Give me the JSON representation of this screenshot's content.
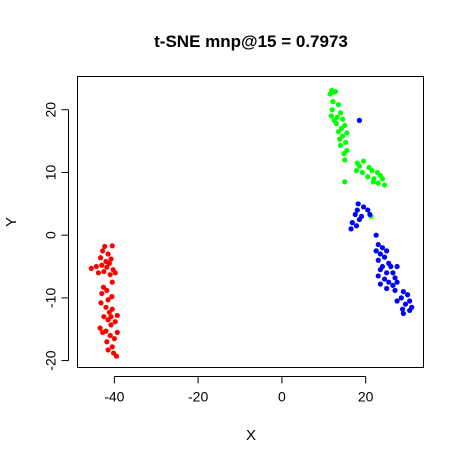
{
  "chart_data": {
    "type": "scatter",
    "title": "t-SNE mnp@15 = 0.7973",
    "xlabel": "X",
    "ylabel": "Y",
    "xlim": [
      -48.8,
      33.8
    ],
    "ylim": [
      -21.1,
      25.3
    ],
    "xticks": [
      -40,
      -20,
      0,
      20
    ],
    "yticks": [
      -20,
      -10,
      0,
      10,
      20
    ],
    "grid": false,
    "legend": "none",
    "series": [
      {
        "color": "#ff0000",
        "points": [
          [
            -42.3,
            -1.8
          ],
          [
            -40.5,
            -1.7
          ],
          [
            -42.8,
            -2.5
          ],
          [
            -41.5,
            -3.0
          ],
          [
            -43.3,
            -3.6
          ],
          [
            -40.8,
            -3.8
          ],
          [
            -42.0,
            -4.2
          ],
          [
            -41.2,
            -4.5
          ],
          [
            -43.0,
            -4.8
          ],
          [
            -41.8,
            -5.1
          ],
          [
            -44.3,
            -5.0
          ],
          [
            -45.5,
            -5.3
          ],
          [
            -40.3,
            -5.5
          ],
          [
            -42.5,
            -5.8
          ],
          [
            -39.8,
            -6.0
          ],
          [
            -41.0,
            -6.3
          ],
          [
            -43.8,
            -6.0
          ],
          [
            -40.5,
            -7.5
          ],
          [
            -42.6,
            -8.3
          ],
          [
            -41.8,
            -8.8
          ],
          [
            -43.0,
            -9.3
          ],
          [
            -40.6,
            -9.8
          ],
          [
            -41.5,
            -10.3
          ],
          [
            -43.2,
            -10.8
          ],
          [
            -42.0,
            -11.5
          ],
          [
            -40.5,
            -11.8
          ],
          [
            -41.2,
            -12.3
          ],
          [
            -39.3,
            -12.8
          ],
          [
            -40.8,
            -13.0
          ],
          [
            -42.5,
            -13.0
          ],
          [
            -41.5,
            -13.5
          ],
          [
            -39.8,
            -13.8
          ],
          [
            -40.8,
            -14.3
          ],
          [
            -43.4,
            -14.8
          ],
          [
            -42.0,
            -15.3
          ],
          [
            -39.3,
            -15.5
          ],
          [
            -41.0,
            -16.0
          ],
          [
            -42.8,
            -15.5
          ],
          [
            -40.0,
            -16.5
          ],
          [
            -41.8,
            -17.0
          ],
          [
            -40.5,
            -17.8
          ],
          [
            -41.5,
            -18.3
          ],
          [
            -40.2,
            -18.8
          ],
          [
            -39.5,
            -19.3
          ]
        ]
      },
      {
        "color": "#00ff00",
        "points": [
          [
            11.9,
            23.1
          ],
          [
            12.4,
            22.8
          ],
          [
            11.5,
            22.5
          ],
          [
            12.8,
            22.9
          ],
          [
            12.2,
            21.3
          ],
          [
            13.5,
            20.8
          ],
          [
            12.0,
            20.0
          ],
          [
            14.0,
            19.5
          ],
          [
            11.8,
            19.0
          ],
          [
            13.2,
            18.8
          ],
          [
            12.5,
            18.3
          ],
          [
            14.5,
            18.5
          ],
          [
            13.0,
            17.8
          ],
          [
            15.0,
            17.5
          ],
          [
            14.2,
            17.0
          ],
          [
            13.5,
            16.5
          ],
          [
            15.5,
            16.3
          ],
          [
            14.5,
            15.8
          ],
          [
            13.8,
            15.3
          ],
          [
            15.2,
            14.8
          ],
          [
            14.0,
            14.3
          ],
          [
            15.5,
            13.5
          ],
          [
            14.8,
            13.0
          ],
          [
            15.0,
            12.0
          ],
          [
            18.0,
            11.5
          ],
          [
            19.5,
            11.8
          ],
          [
            18.5,
            11.0
          ],
          [
            20.8,
            10.8
          ],
          [
            17.8,
            10.3
          ],
          [
            19.2,
            10.0
          ],
          [
            21.5,
            10.3
          ],
          [
            22.8,
            10.0
          ],
          [
            23.5,
            9.5
          ],
          [
            22.0,
            9.0
          ],
          [
            20.5,
            9.3
          ],
          [
            21.8,
            8.5
          ],
          [
            24.0,
            9.0
          ],
          [
            23.0,
            8.3
          ],
          [
            24.5,
            8.0
          ],
          [
            15.0,
            8.5
          ],
          [
            21.3,
            3.0
          ]
        ]
      },
      {
        "color": "#0000ff",
        "points": [
          [
            18.5,
            18.3
          ],
          [
            18.2,
            5.0
          ],
          [
            19.5,
            4.5
          ],
          [
            18.0,
            4.0
          ],
          [
            20.5,
            4.0
          ],
          [
            17.5,
            3.3
          ],
          [
            19.0,
            3.0
          ],
          [
            21.0,
            3.3
          ],
          [
            18.5,
            2.5
          ],
          [
            16.8,
            2.0
          ],
          [
            17.8,
            1.5
          ],
          [
            16.5,
            1.0
          ],
          [
            22.5,
            0.0
          ],
          [
            23.0,
            -1.5
          ],
          [
            24.0,
            -2.0
          ],
          [
            22.5,
            -2.5
          ],
          [
            25.0,
            -2.5
          ],
          [
            23.5,
            -3.0
          ],
          [
            24.5,
            -3.5
          ],
          [
            23.0,
            -4.0
          ],
          [
            25.5,
            -4.5
          ],
          [
            24.0,
            -5.0
          ],
          [
            26.0,
            -5.0
          ],
          [
            23.5,
            -5.5
          ],
          [
            27.5,
            -5.0
          ],
          [
            25.0,
            -6.0
          ],
          [
            23.0,
            -6.5
          ],
          [
            26.5,
            -6.0
          ],
          [
            27.0,
            -6.8
          ],
          [
            24.5,
            -7.0
          ],
          [
            25.5,
            -7.5
          ],
          [
            27.5,
            -7.5
          ],
          [
            23.5,
            -7.8
          ],
          [
            26.5,
            -8.0
          ],
          [
            25.0,
            -8.5
          ],
          [
            27.0,
            -8.8
          ],
          [
            29.0,
            -9.0
          ],
          [
            30.0,
            -9.5
          ],
          [
            28.5,
            -10.0
          ],
          [
            30.5,
            -10.5
          ],
          [
            27.5,
            -10.5
          ],
          [
            29.5,
            -11.0
          ],
          [
            31.0,
            -11.5
          ],
          [
            28.8,
            -11.8
          ],
          [
            30.5,
            -12.0
          ],
          [
            29.0,
            -12.5
          ]
        ]
      }
    ]
  }
}
